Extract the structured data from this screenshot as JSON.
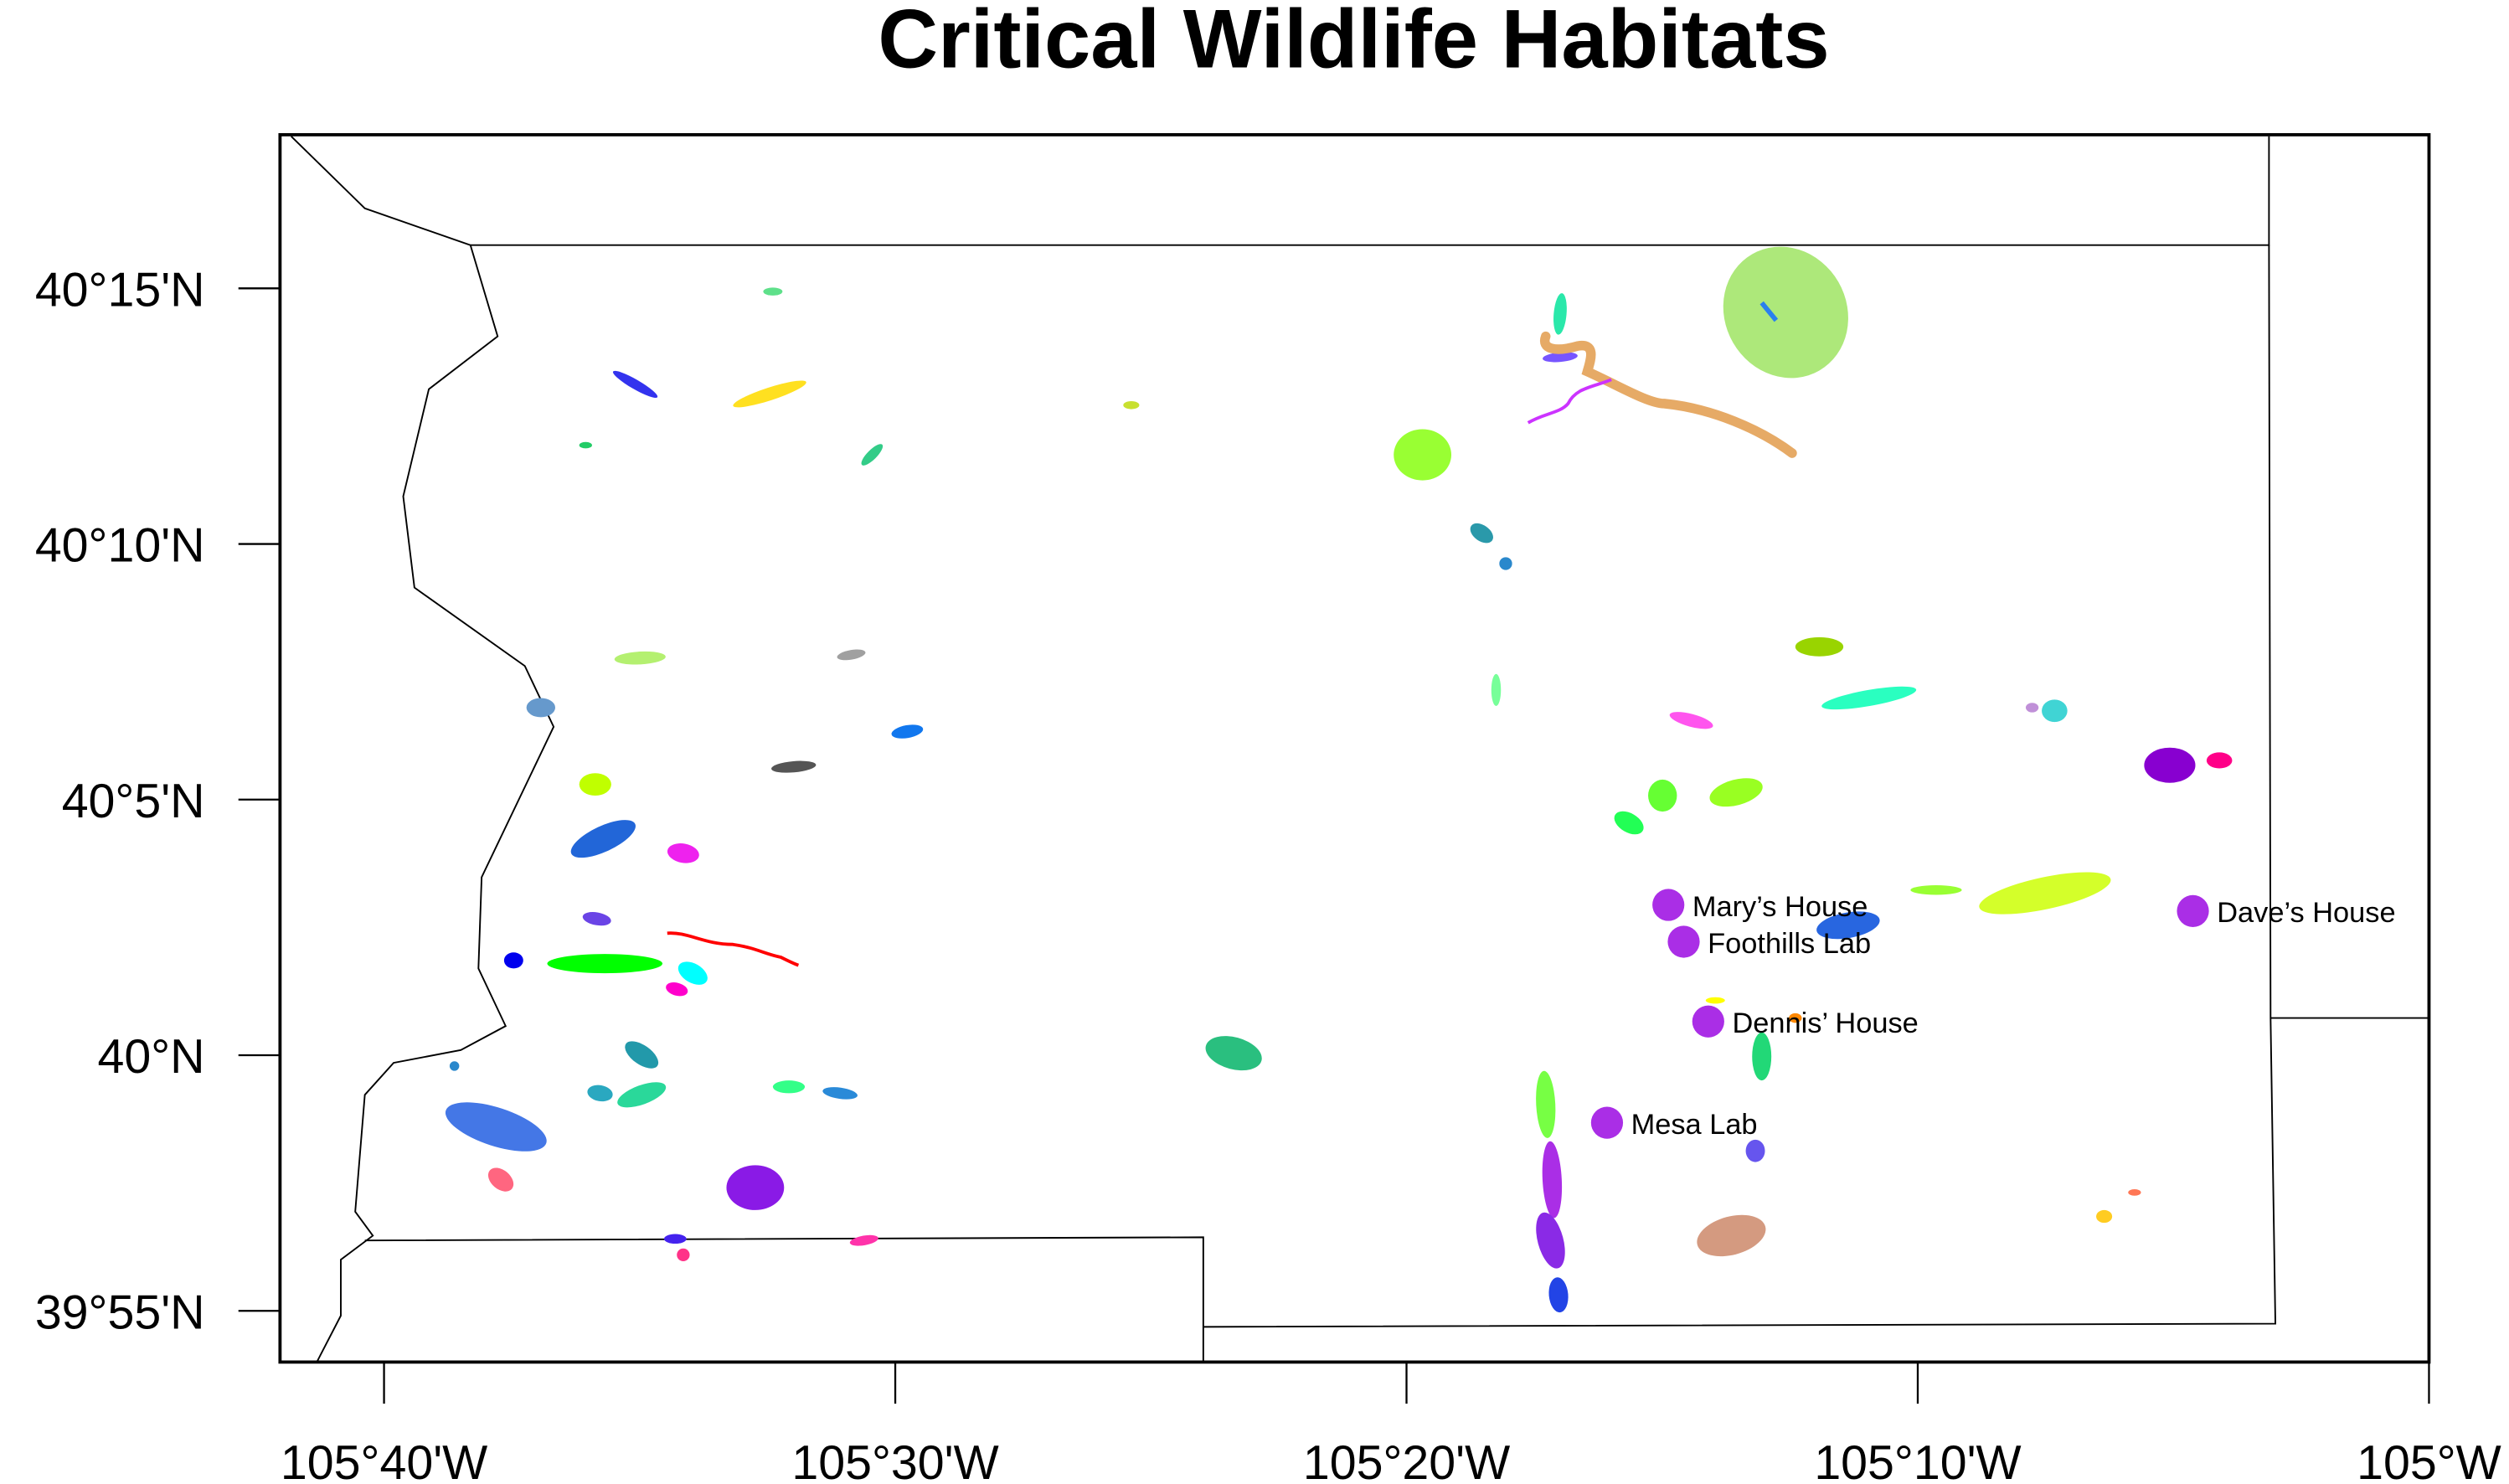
{
  "title": "Critical Wildlife Habitats",
  "x_axis": {
    "ticks": [
      "105°40'W",
      "105°30'W",
      "105°20'W",
      "105°10'W",
      "105°W"
    ],
    "range_deg": [
      -105.7,
      -105.0
    ]
  },
  "y_axis": {
    "ticks": [
      "40°15'N",
      "40°10'N",
      "40°5'N",
      "40°N",
      "39°55'N"
    ],
    "range_deg": [
      39.9,
      40.3
    ]
  },
  "places": [
    {
      "name": "Mary’s House",
      "lon": -105.248,
      "lat": 40.049
    },
    {
      "name": "Foothills Lab",
      "lon": -105.243,
      "lat": 40.037
    },
    {
      "name": "Dennis’ House",
      "lon": -105.235,
      "lat": 40.011
    },
    {
      "name": "Mesa Lab",
      "lon": -105.268,
      "lat": 39.978
    },
    {
      "name": "Dave’s House",
      "lon": -105.077,
      "lat": 40.047
    }
  ],
  "colors": {
    "place_marker": "#aa2ee6",
    "boundary": "#000000"
  }
}
